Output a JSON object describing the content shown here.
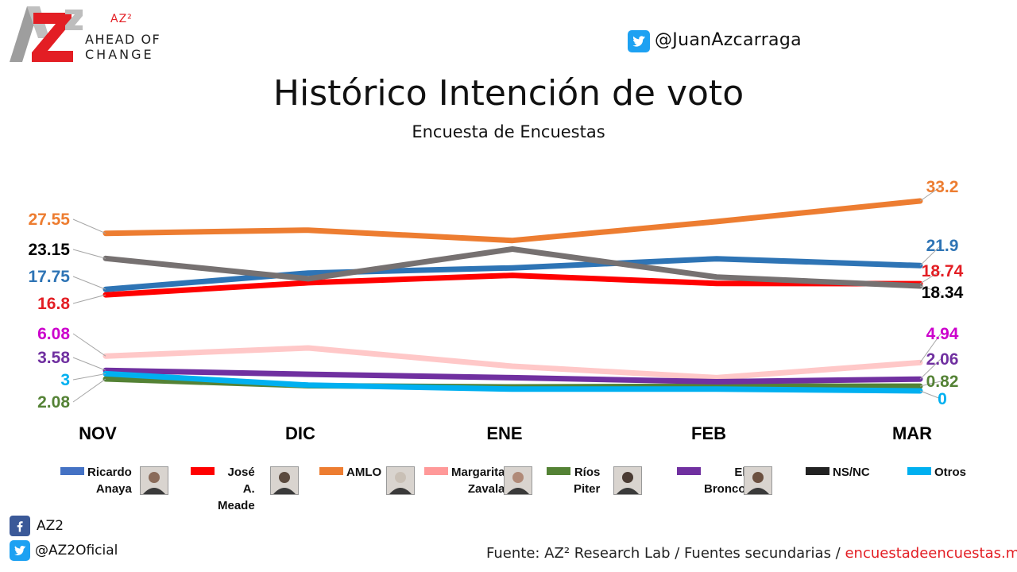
{
  "brand": {
    "logo_text": "AZ2",
    "superscript": "AZ²",
    "tagline_line1": "AHEAD OF",
    "tagline_line2": "CHANGE"
  },
  "header": {
    "twitter_handle": "@JuanAzcarraga",
    "title": "Histórico Intención de voto",
    "subtitle": "Encuesta de Encuestas"
  },
  "chart_data": {
    "type": "line",
    "title": "Histórico Intención de voto",
    "subtitle": "Encuesta de Encuestas",
    "categories": [
      "NOV",
      "DIC",
      "ENE",
      "FEB",
      "MAR"
    ],
    "ylim": [
      0,
      35
    ],
    "grid": false,
    "legend_position": "bottom",
    "series": [
      {
        "name": "Ricardo Anaya",
        "color": "#2e74b5",
        "values": [
          17.75,
          20.6,
          21.5,
          23.1,
          21.9
        ],
        "first_label": "17.75",
        "last_label": "21.9"
      },
      {
        "name": "José A. Meade",
        "color": "#ff0000",
        "values": [
          16.8,
          18.9,
          20.2,
          18.8,
          18.74
        ],
        "first_label": "16.8",
        "last_label": "18.74"
      },
      {
        "name": "AMLO",
        "color": "#ed7d31",
        "values": [
          27.55,
          28.1,
          26.3,
          29.6,
          33.2
        ],
        "first_label": "27.55",
        "last_label": "33.2"
      },
      {
        "name": "Margarita Zavala",
        "color": "#ffc8c8",
        "values": [
          6.08,
          7.5,
          4.3,
          2.3,
          4.94
        ],
        "first_label": "6.08",
        "last_label": "4.94"
      },
      {
        "name": "Ríos Piter",
        "color": "#548235",
        "values": [
          2.08,
          0.9,
          0.7,
          0.8,
          0.82
        ],
        "first_label": "2.08",
        "last_label": "0.82"
      },
      {
        "name": "El Bronco",
        "color": "#7030a0",
        "values": [
          3.58,
          2.9,
          2.3,
          1.6,
          2.06
        ],
        "first_label": "3.58",
        "last_label": "2.06"
      },
      {
        "name": "NS/NC",
        "color": "#767171",
        "values": [
          23.15,
          19.6,
          24.8,
          19.9,
          18.34
        ],
        "first_label": "23.15",
        "last_label": "18.34"
      },
      {
        "name": "Otros",
        "color": "#00b0f0",
        "values": [
          3,
          1,
          0.3,
          0.3,
          0
        ],
        "first_label": "3",
        "last_label": "0"
      }
    ]
  },
  "label_colors": {
    "Ricardo Anaya": "#2e74b5",
    "José A. Meade": "#e31e24",
    "AMLO": "#ed7d31",
    "Margarita Zavala": "#cc00cc",
    "Ríos Piter": "#548235",
    "El Bronco": "#7030a0",
    "NS/NC": "#000000",
    "Otros": "#00b0f0"
  },
  "legend": [
    {
      "name": "Ricardo Anaya",
      "color": "#4472c4",
      "label_lines": [
        "Ricardo",
        "Anaya"
      ],
      "has_photo": true
    },
    {
      "name": "José A. Meade",
      "color": "#ff0000",
      "label_lines": [
        "José A.",
        "Meade"
      ],
      "has_photo": true
    },
    {
      "name": "AMLO",
      "color": "#ed7d31",
      "label_lines": [
        "AMLO"
      ],
      "has_photo": true
    },
    {
      "name": "Margarita Zavala",
      "color": "#ff9999",
      "label_lines": [
        "Margarita",
        "Zavala"
      ],
      "has_photo": true
    },
    {
      "name": "Ríos Piter",
      "color": "#548235",
      "label_lines": [
        "Ríos",
        "Piter"
      ],
      "has_photo": true
    },
    {
      "name": "El Bronco",
      "color": "#7030a0",
      "label_lines": [
        "El",
        "Bronco"
      ],
      "has_photo": true
    },
    {
      "name": "NS/NC",
      "color": "#222222",
      "label_lines": [
        "NS/NC"
      ],
      "has_photo": false
    },
    {
      "name": "Otros",
      "color": "#00b0f0",
      "label_lines": [
        "Otros"
      ],
      "has_photo": false
    }
  ],
  "footer": {
    "facebook_text": "AZ2",
    "twitter_text": "@AZ2Oficial",
    "source_text": "Fuente: AZ² Research Lab / Fuentes secundarias / ",
    "source_link": "encuestadeencuestas.mx"
  },
  "icons": {
    "twitter": "twitter-icon",
    "facebook": "facebook-icon"
  }
}
